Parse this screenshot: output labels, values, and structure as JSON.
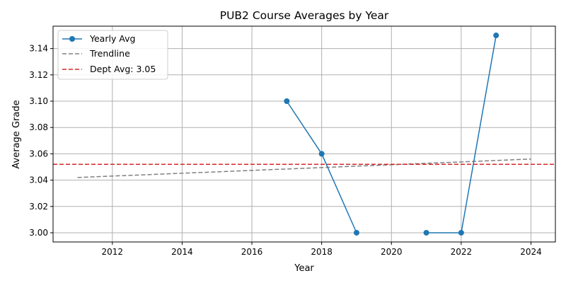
{
  "chart_data": {
    "type": "line",
    "title": "PUB2 Course Averages by Year",
    "xlabel": "Year",
    "ylabel": "Average Grade",
    "xlim": [
      2010.3,
      2024.7
    ],
    "ylim": [
      2.993,
      3.157
    ],
    "x_ticks": [
      2012,
      2014,
      2016,
      2018,
      2020,
      2022,
      2024
    ],
    "y_ticks": [
      3.0,
      3.02,
      3.04,
      3.06,
      3.08,
      3.1,
      3.12,
      3.14
    ],
    "x_tick_labels": [
      "2012",
      "2014",
      "2016",
      "2018",
      "2020",
      "2022",
      "2024"
    ],
    "y_tick_labels": [
      "3.00",
      "3.02",
      "3.04",
      "3.06",
      "3.08",
      "3.10",
      "3.12",
      "3.14"
    ],
    "grid": true,
    "legend_position": "top-left",
    "series": [
      {
        "name": "Yearly Avg",
        "style": "solid-marker",
        "color": "#1f77b4",
        "segments": [
          [
            {
              "x": 2017,
              "y": 3.1
            },
            {
              "x": 2018,
              "y": 3.06
            },
            {
              "x": 2019,
              "y": 3.0
            }
          ],
          [
            {
              "x": 2021,
              "y": 3.0
            },
            {
              "x": 2022,
              "y": 3.0
            },
            {
              "x": 2023,
              "y": 3.15
            }
          ]
        ]
      },
      {
        "name": "Trendline",
        "style": "dashed",
        "color": "#808080",
        "points": [
          {
            "x": 2011,
            "y": 3.042
          },
          {
            "x": 2024,
            "y": 3.056
          }
        ]
      },
      {
        "name": "Dept Avg: 3.05",
        "style": "dashed-horizontal",
        "color": "#d62728",
        "y": 3.052
      }
    ]
  }
}
